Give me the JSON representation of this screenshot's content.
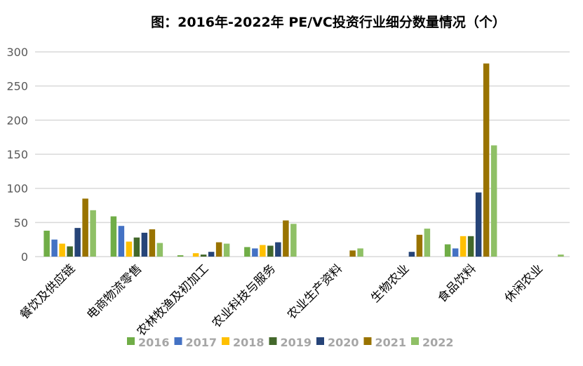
{
  "chart_data": {
    "type": "bar",
    "title": "图：2016年-2022年 PE/VC投资行业细分数量情况（个）",
    "xlabel": "",
    "ylabel": "",
    "ylim": [
      0,
      300
    ],
    "yticks": [
      0,
      50,
      100,
      150,
      200,
      250,
      300
    ],
    "grid": true,
    "legend_position": "bottom",
    "categories": [
      "餐饮及供应链",
      "电商物流零售",
      "农林牧渔及初加工",
      "农业科技与服务",
      "农业生产资料",
      "生物农业",
      "食品饮料",
      "休闲农业"
    ],
    "series": [
      {
        "name": "2016",
        "color": "#70ad47",
        "values": [
          38,
          59,
          2,
          14,
          0,
          0,
          18,
          0
        ]
      },
      {
        "name": "2017",
        "color": "#4472c4",
        "values": [
          25,
          45,
          0,
          12,
          0,
          0,
          12,
          0
        ]
      },
      {
        "name": "2018",
        "color": "#ffc000",
        "values": [
          19,
          22,
          5,
          17,
          0,
          0,
          30,
          0
        ]
      },
      {
        "name": "2019",
        "color": "#43682b",
        "values": [
          15,
          28,
          3,
          16,
          0,
          0,
          30,
          0
        ]
      },
      {
        "name": "2020",
        "color": "#264478",
        "values": [
          42,
          35,
          7,
          21,
          0,
          7,
          94,
          0
        ]
      },
      {
        "name": "2021",
        "color": "#997300",
        "values": [
          85,
          40,
          21,
          53,
          9,
          32,
          283,
          0
        ]
      },
      {
        "name": "2022",
        "color": "#8fc066",
        "values": [
          68,
          20,
          19,
          48,
          12,
          41,
          163,
          3
        ]
      }
    ]
  }
}
